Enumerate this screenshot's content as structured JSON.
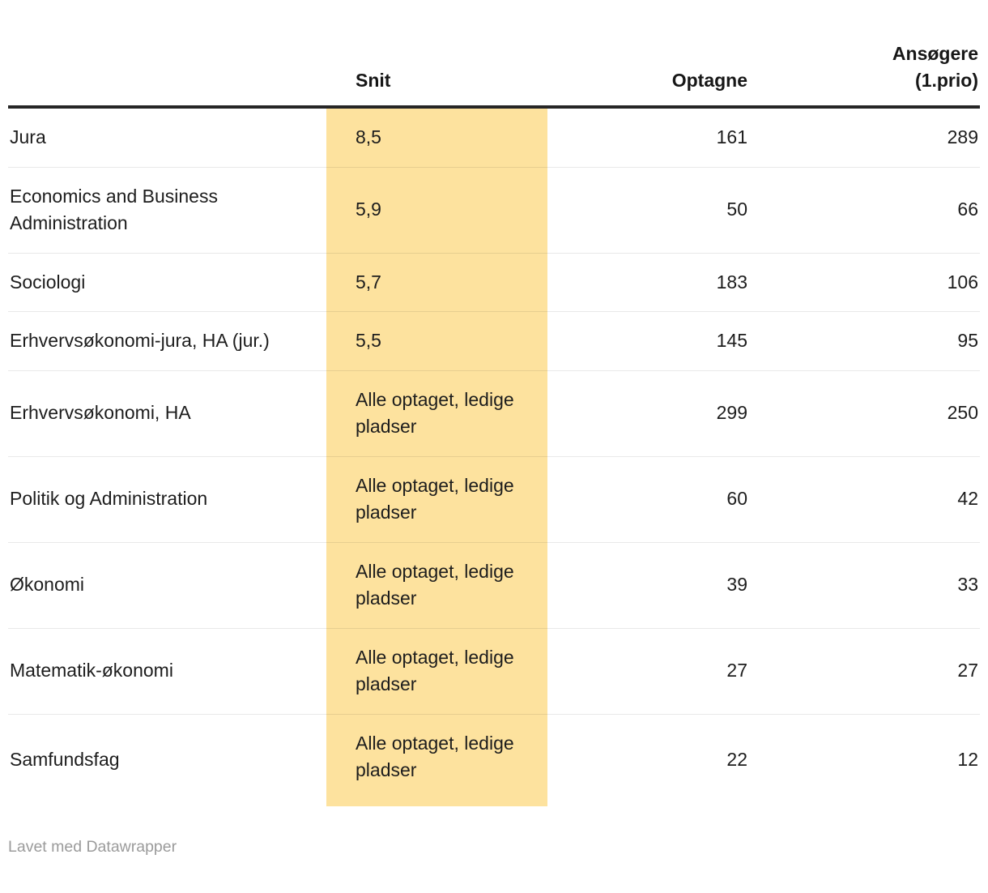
{
  "chart_data": {
    "type": "table",
    "columns": {
      "name": "",
      "snit": "Snit",
      "optagne": "Optagne",
      "ansogere": "Ansøgere\n(1.prio)"
    },
    "rows": [
      {
        "name": "Jura",
        "snit": "8,5",
        "optagne": "161",
        "ansogere": "289"
      },
      {
        "name": "Economics and Business Administration",
        "snit": "5,9",
        "optagne": "50",
        "ansogere": "66"
      },
      {
        "name": "Sociologi",
        "snit": "5,7",
        "optagne": "183",
        "ansogere": "106"
      },
      {
        "name": "Erhvervsøkonomi-jura, HA (jur.)",
        "snit": "5,5",
        "optagne": "145",
        "ansogere": "95"
      },
      {
        "name": "Erhvervsøkonomi, HA",
        "snit": "Alle optaget, ledige pladser",
        "optagne": "299",
        "ansogere": "250"
      },
      {
        "name": "Politik og Administration",
        "snit": "Alle optaget, ledige pladser",
        "optagne": "60",
        "ansogere": "42"
      },
      {
        "name": "Økonomi",
        "snit": "Alle optaget, ledige pladser",
        "optagne": "39",
        "ansogere": "33"
      },
      {
        "name": "Matematik-økonomi",
        "snit": "Alle optaget, ledige pladser",
        "optagne": "27",
        "ansogere": "27"
      },
      {
        "name": "Samfundsfag",
        "snit": "Alle optaget, ledige pladser",
        "optagne": "22",
        "ansogere": "12"
      }
    ],
    "highlight_column": "snit",
    "highlight_color": "#FDE29E",
    "grid": "horizontal-rules",
    "header_rule_color": "#262626",
    "row_rule_color": "#ebebeb"
  },
  "footer": {
    "credit": "Lavet med Datawrapper"
  }
}
